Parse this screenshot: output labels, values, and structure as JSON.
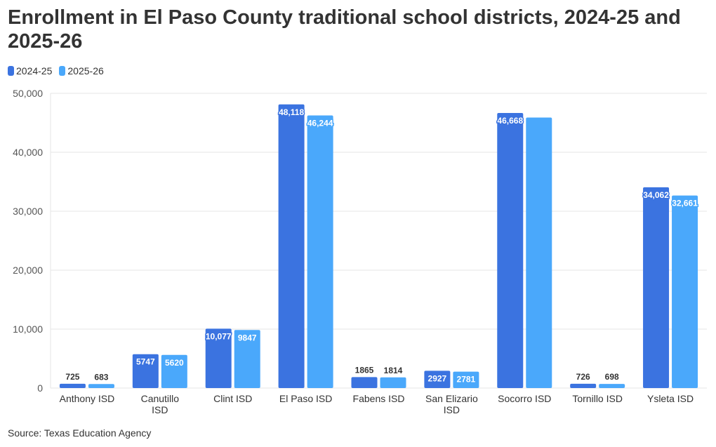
{
  "title": "Enrollment in El Paso County traditional school districts, 2024-25 and 2025-26",
  "source": "Source: Texas Education Agency",
  "colors": {
    "series1": "#3b73e0",
    "series2": "#4aa8fb",
    "grid": "#e6e6e6",
    "text": "#333333",
    "axis": "#555555"
  },
  "chart_data": {
    "type": "bar",
    "title": "Enrollment in El Paso County traditional school districts, 2024-25 and 2025-26",
    "xlabel": "",
    "ylabel": "",
    "ylim": [
      0,
      50000
    ],
    "yticks": [
      0,
      10000,
      20000,
      30000,
      40000,
      50000
    ],
    "ytick_labels": [
      "0",
      "10,000",
      "20,000",
      "30,000",
      "40,000",
      "50,000"
    ],
    "legend_position": "top-left",
    "categories": [
      "Anthony ISD",
      "Canutillo ISD",
      "Clint ISD",
      "El Paso ISD",
      "Fabens ISD",
      "San Elizario ISD",
      "Socorro ISD",
      "Tornillo ISD",
      "Ysleta ISD"
    ],
    "series": [
      {
        "name": "2024-25",
        "values": [
          725,
          5747,
          10077,
          48118,
          1865,
          2927,
          46668,
          726,
          34062
        ],
        "labels": [
          "725",
          "5747",
          "10,077",
          "48,118",
          "1865",
          "2927",
          "46,668",
          "726",
          "34,062"
        ]
      },
      {
        "name": "2025-26",
        "values": [
          683,
          5620,
          9847,
          46244,
          1814,
          2781,
          45900,
          698,
          32661
        ],
        "labels": [
          "683",
          "5620",
          "9847",
          "46,244",
          "1814",
          "2781",
          "",
          "698",
          "32,661"
        ]
      }
    ]
  }
}
